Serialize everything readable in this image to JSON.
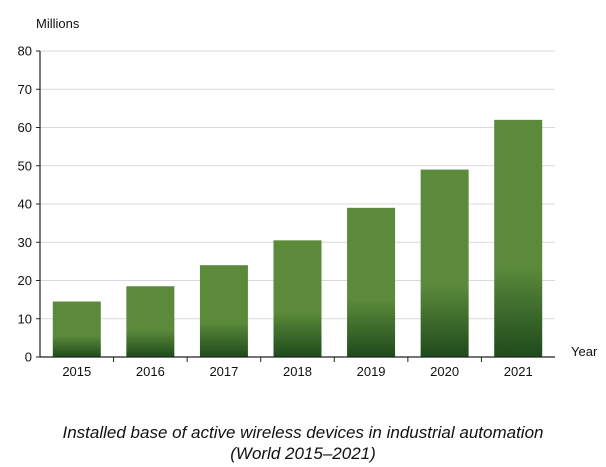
{
  "chart_data": {
    "type": "bar",
    "title": "",
    "ylabel": "Millions",
    "xlabel": "Year",
    "categories": [
      "2015",
      "2016",
      "2017",
      "2018",
      "2019",
      "2020",
      "2021"
    ],
    "values": [
      14.5,
      18.5,
      24,
      30.5,
      39,
      49,
      62
    ],
    "ylim": [
      0,
      80
    ],
    "yticks": [
      0,
      10,
      20,
      30,
      40,
      50,
      60,
      70,
      80
    ],
    "grid": true,
    "bar_color_top": "#5a8a3a",
    "bar_color_bottom": "#1f4a1c"
  },
  "caption": {
    "line1": "Installed base of active wireless devices in industrial automation",
    "line2": "(World 2015–2021)"
  }
}
